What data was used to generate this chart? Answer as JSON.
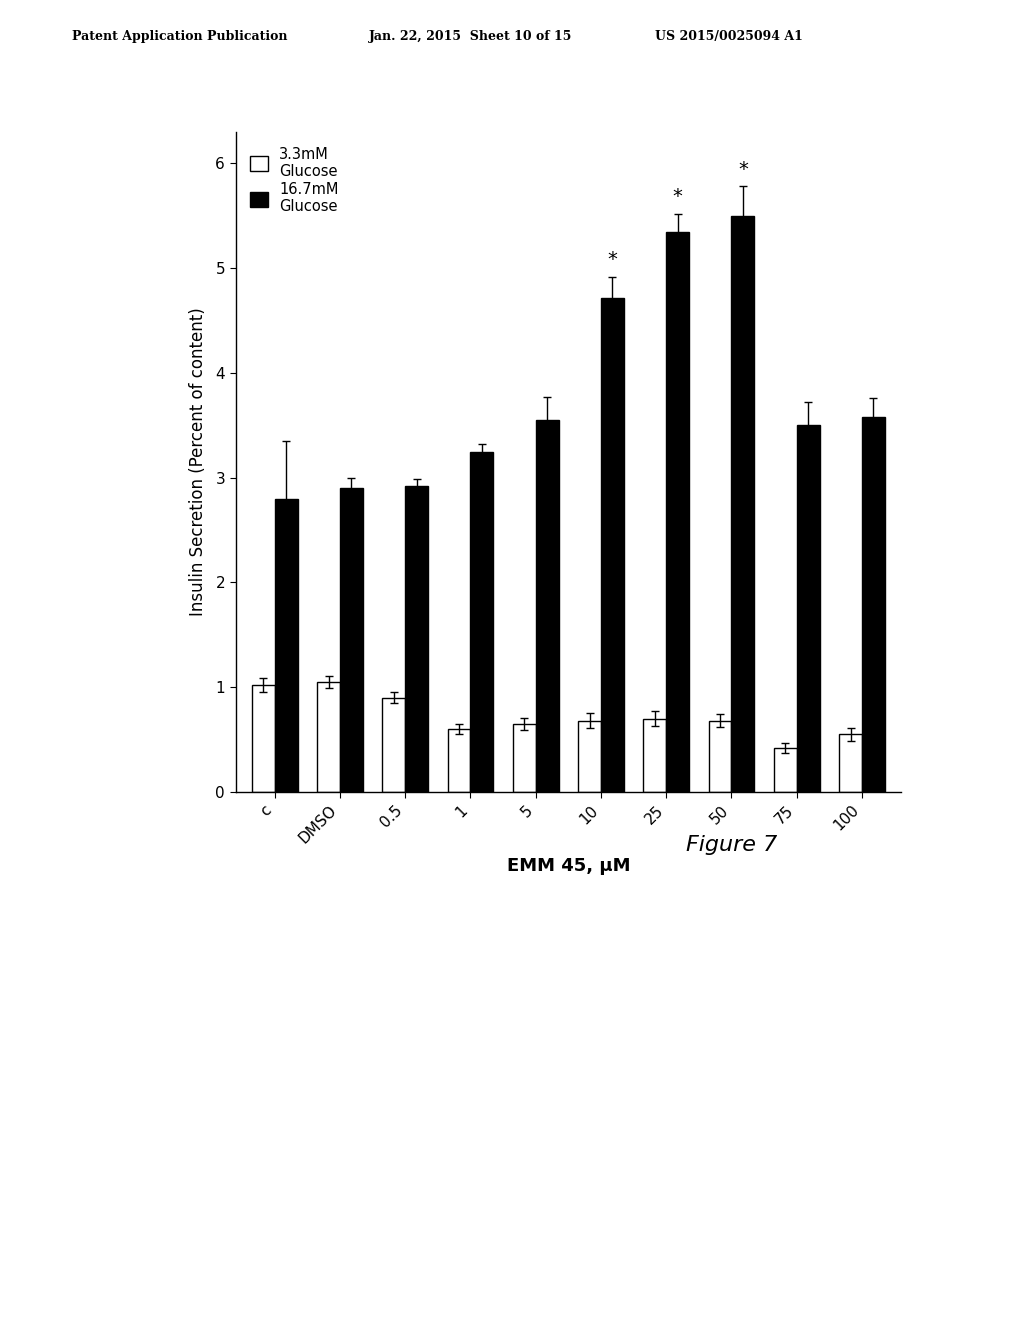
{
  "categories": [
    "c",
    "DMSO",
    "0.5",
    "1",
    "5",
    "10",
    "25",
    "50",
    "75",
    "100"
  ],
  "white_bars": [
    1.02,
    1.05,
    0.9,
    0.6,
    0.65,
    0.68,
    0.7,
    0.68,
    0.42,
    0.55
  ],
  "black_bars": [
    2.8,
    2.9,
    2.92,
    3.25,
    3.55,
    4.72,
    5.35,
    5.5,
    3.5,
    3.58
  ],
  "white_errors": [
    0.07,
    0.06,
    0.05,
    0.05,
    0.06,
    0.07,
    0.07,
    0.06,
    0.05,
    0.06
  ],
  "black_errors": [
    0.55,
    0.1,
    0.07,
    0.07,
    0.22,
    0.2,
    0.17,
    0.28,
    0.22,
    0.18
  ],
  "star_indices": [
    5,
    6,
    7
  ],
  "ylabel": "Insulin Secretion (Percent of content)",
  "xlabel": "EMM 45, μM",
  "ylim": [
    0,
    6.3
  ],
  "yticks": [
    0,
    1,
    2,
    3,
    4,
    5,
    6
  ],
  "legend_white": "3.3mM\nGlucose",
  "legend_black": "16.7mM\nGlucose",
  "figure_label": "Figure 7",
  "header_left": "Patent Application Publication",
  "header_center": "Jan. 22, 2015  Sheet 10 of 15",
  "header_right": "US 2015/0025094 A1",
  "bar_width": 0.35,
  "background_color": "#ffffff",
  "bar_color_white": "#ffffff",
  "bar_color_black": "#000000",
  "edge_color": "#000000"
}
